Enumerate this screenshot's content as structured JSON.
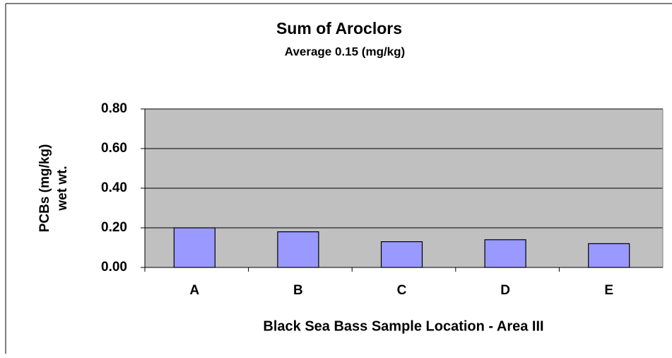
{
  "chart_data": {
    "type": "bar",
    "title": "Sum of Aroclors",
    "subtitle": "Average 0.15 (mg/kg)",
    "y_label": [
      "PCBs (mg/kg)",
      "wet wt."
    ],
    "x_label": "Black Sea Bass Sample Location - Area III",
    "categories": [
      "A",
      "B",
      "C",
      "D",
      "E"
    ],
    "values": [
      0.2,
      0.18,
      0.13,
      0.14,
      0.12
    ],
    "color": "#9999ff",
    "ylim": [
      0,
      0.8
    ],
    "yticks": [
      {
        "value": 0,
        "label": "0.00"
      },
      {
        "value": 0.2,
        "label": "0.20"
      },
      {
        "value": 0.4,
        "label": "0.40"
      },
      {
        "value": 0.6,
        "label": "0.60"
      },
      {
        "value": 0.8,
        "label": "0.80"
      }
    ],
    "grid": true
  }
}
